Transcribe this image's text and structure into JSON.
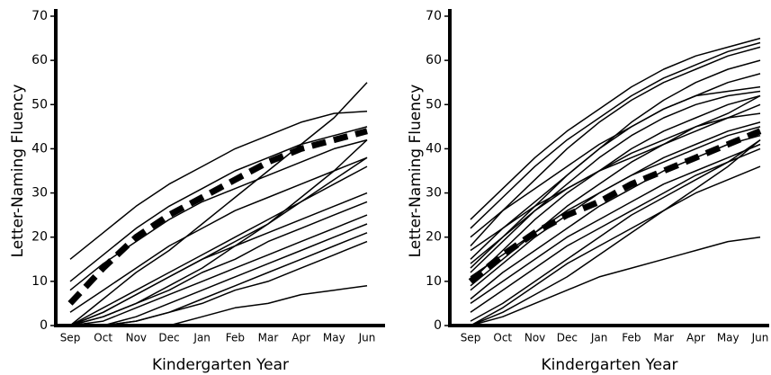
{
  "chart_data": [
    {
      "type": "line",
      "ylabel": "Letter-Naming Fluency",
      "xlabel": "Kindergarten Year",
      "categories": [
        "Sep",
        "Oct",
        "Nov",
        "Dec",
        "Jan",
        "Feb",
        "Mar",
        "Apr",
        "May",
        "Jun"
      ],
      "ylim": [
        0,
        70
      ],
      "yticks": [
        0,
        10,
        20,
        30,
        40,
        50,
        60,
        70
      ],
      "grid": false,
      "series": [
        {
          "color": "#000000",
          "values": [
            15,
            21,
            27,
            32,
            36,
            40,
            43,
            46,
            48,
            48.5
          ]
        },
        {
          "color": "#000000",
          "values": [
            10,
            16,
            22,
            27,
            31,
            35,
            38,
            41,
            43,
            45
          ]
        },
        {
          "color": "#000000",
          "values": [
            8,
            14,
            19,
            24,
            28,
            31,
            34,
            37,
            40,
            42
          ]
        },
        {
          "color": "#000000",
          "values": [
            0,
            3,
            7,
            11,
            15,
            19,
            23,
            28,
            33,
            38
          ]
        },
        {
          "color": "#000000",
          "values": [
            0,
            4,
            8,
            12,
            16,
            20,
            24,
            28,
            32,
            36
          ]
        },
        {
          "color": "#000000",
          "values": [
            0,
            2,
            5,
            9,
            13,
            18,
            23,
            29,
            35,
            42
          ]
        },
        {
          "color": "#000000",
          "values": [
            0,
            6,
            12,
            17,
            23,
            29,
            35,
            41,
            47,
            55
          ]
        },
        {
          "color": "#000000",
          "values": [
            0,
            2,
            5,
            8,
            12,
            15,
            19,
            22,
            25,
            28
          ]
        },
        {
          "color": "#000000",
          "values": [
            0,
            1,
            4,
            7,
            10,
            13,
            16,
            19,
            22,
            25
          ]
        },
        {
          "color": "#000000",
          "values": [
            0,
            0,
            2,
            5,
            8,
            11,
            14,
            17,
            20,
            23
          ]
        },
        {
          "color": "#000000",
          "values": [
            0,
            0,
            1,
            3,
            6,
            9,
            12,
            15,
            18,
            21
          ]
        },
        {
          "color": "#000000",
          "values": [
            0,
            0,
            0,
            0,
            2,
            4,
            5,
            7,
            8,
            9
          ]
        },
        {
          "color": "#000000",
          "values": [
            0,
            3,
            7,
            11,
            15,
            18,
            21,
            24,
            27,
            30
          ]
        },
        {
          "color": "#000000",
          "values": [
            3,
            8,
            13,
            18,
            22,
            26,
            29,
            32,
            35,
            38
          ]
        },
        {
          "color": "#000000",
          "values": [
            0,
            0,
            1,
            3,
            5,
            8,
            10,
            13,
            16,
            19
          ]
        },
        {
          "color": "#000000",
          "style": "dashed",
          "values": [
            5,
            13,
            20,
            25,
            29,
            33,
            37,
            40,
            42,
            44
          ]
        }
      ]
    },
    {
      "type": "line",
      "ylabel": "Letter-Naming Fluency",
      "xlabel": "Kindergarten Year",
      "categories": [
        "Sep",
        "Oct",
        "Nov",
        "Dec",
        "Jan",
        "Feb",
        "Mar",
        "Apr",
        "May",
        "Jun"
      ],
      "ylim": [
        0,
        70
      ],
      "yticks": [
        0,
        10,
        20,
        30,
        40,
        50,
        60,
        70
      ],
      "grid": false,
      "series": [
        {
          "color": "#000000",
          "values": [
            24,
            31,
            38,
            44,
            49,
            54,
            58,
            61,
            63,
            65
          ]
        },
        {
          "color": "#000000",
          "values": [
            22,
            29,
            36,
            42,
            47,
            52,
            56,
            59,
            62,
            64
          ]
        },
        {
          "color": "#000000",
          "values": [
            18,
            26,
            33,
            40,
            46,
            51,
            55,
            58,
            61,
            63
          ]
        },
        {
          "color": "#000000",
          "values": [
            15,
            22,
            28,
            34,
            40,
            45,
            49,
            52,
            55,
            57
          ]
        },
        {
          "color": "#000000",
          "values": [
            12,
            19,
            26,
            32,
            38,
            43,
            47,
            50,
            52,
            53
          ]
        },
        {
          "color": "#000000",
          "values": [
            20,
            26,
            31,
            36,
            41,
            45,
            49,
            52,
            53,
            54
          ]
        },
        {
          "color": "#000000",
          "values": [
            10,
            17,
            24,
            30,
            35,
            40,
            44,
            47,
            50,
            52
          ]
        },
        {
          "color": "#000000",
          "values": [
            14,
            20,
            26,
            31,
            35,
            39,
            42,
            45,
            47,
            48
          ]
        },
        {
          "color": "#000000",
          "values": [
            8,
            14,
            20,
            25,
            30,
            34,
            38,
            41,
            44,
            46
          ]
        },
        {
          "color": "#000000",
          "values": [
            6,
            12,
            17,
            22,
            27,
            31,
            35,
            38,
            41,
            43
          ]
        },
        {
          "color": "#000000",
          "values": [
            17,
            22,
            27,
            31,
            35,
            38,
            41,
            44,
            47,
            50
          ]
        },
        {
          "color": "#000000",
          "values": [
            5,
            10,
            15,
            20,
            24,
            28,
            32,
            35,
            38,
            41
          ]
        },
        {
          "color": "#000000",
          "values": [
            3,
            8,
            13,
            18,
            22,
            26,
            30,
            34,
            37,
            40
          ]
        },
        {
          "color": "#000000",
          "values": [
            0,
            4,
            9,
            14,
            18,
            22,
            26,
            30,
            33,
            36
          ]
        },
        {
          "color": "#000000",
          "values": [
            0,
            2,
            5,
            8,
            11,
            13,
            15,
            17,
            19,
            20
          ]
        },
        {
          "color": "#000000",
          "values": [
            1,
            5,
            10,
            15,
            20,
            25,
            29,
            33,
            37,
            42
          ]
        },
        {
          "color": "#000000",
          "values": [
            11,
            16,
            21,
            26,
            30,
            34,
            37,
            40,
            43,
            45
          ]
        },
        {
          "color": "#000000",
          "values": [
            9,
            15,
            21,
            27,
            32,
            37,
            41,
            45,
            48,
            52
          ]
        },
        {
          "color": "#000000",
          "values": [
            0,
            3,
            7,
            11,
            16,
            21,
            26,
            31,
            36,
            42
          ]
        },
        {
          "color": "#000000",
          "values": [
            13,
            20,
            27,
            34,
            40,
            46,
            51,
            55,
            58,
            60
          ]
        },
        {
          "color": "#000000",
          "style": "dashed",
          "values": [
            10,
            16,
            21,
            25,
            28,
            32,
            35,
            38,
            41,
            44
          ]
        }
      ]
    }
  ]
}
